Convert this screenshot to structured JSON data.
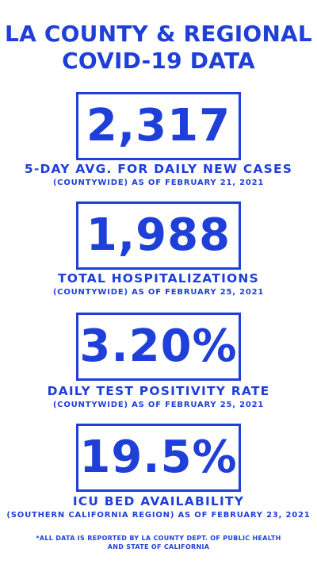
{
  "header": {
    "title_line1": "LA COUNTY & REGIONAL",
    "title_line2": "COVID-19 DATA"
  },
  "stats": [
    {
      "value": "2,317",
      "label": "5-DAY AVG. FOR DAILY NEW CASES",
      "sub": "(COUNTYWIDE) AS OF FEBRUARY 21, 2021"
    },
    {
      "value": "1,988",
      "label": "TOTAL HOSPITALIZATIONS",
      "sub": "(COUNTYWIDE) AS OF FEBRUARY 25, 2021"
    },
    {
      "value": "3.20%",
      "label": "DAILY TEST POSITIVITY RATE",
      "sub": "(COUNTYWIDE) AS OF FEBRUARY 25, 2021"
    },
    {
      "value": "19.5%",
      "label": "ICU BED AVAILABILITY",
      "sub": "(SOUTHERN CALIFORNIA REGION) AS OF FEBRUARY 23, 2021"
    }
  ],
  "footnote": {
    "line1": "*ALL DATA IS REPORTED BY LA COUNTY DEPT. OF PUBLIC HEALTH",
    "line2": "AND STATE OF CALIFORNIA"
  },
  "colors": {
    "accent": "#1f3fd9",
    "background": "#ffffff"
  }
}
